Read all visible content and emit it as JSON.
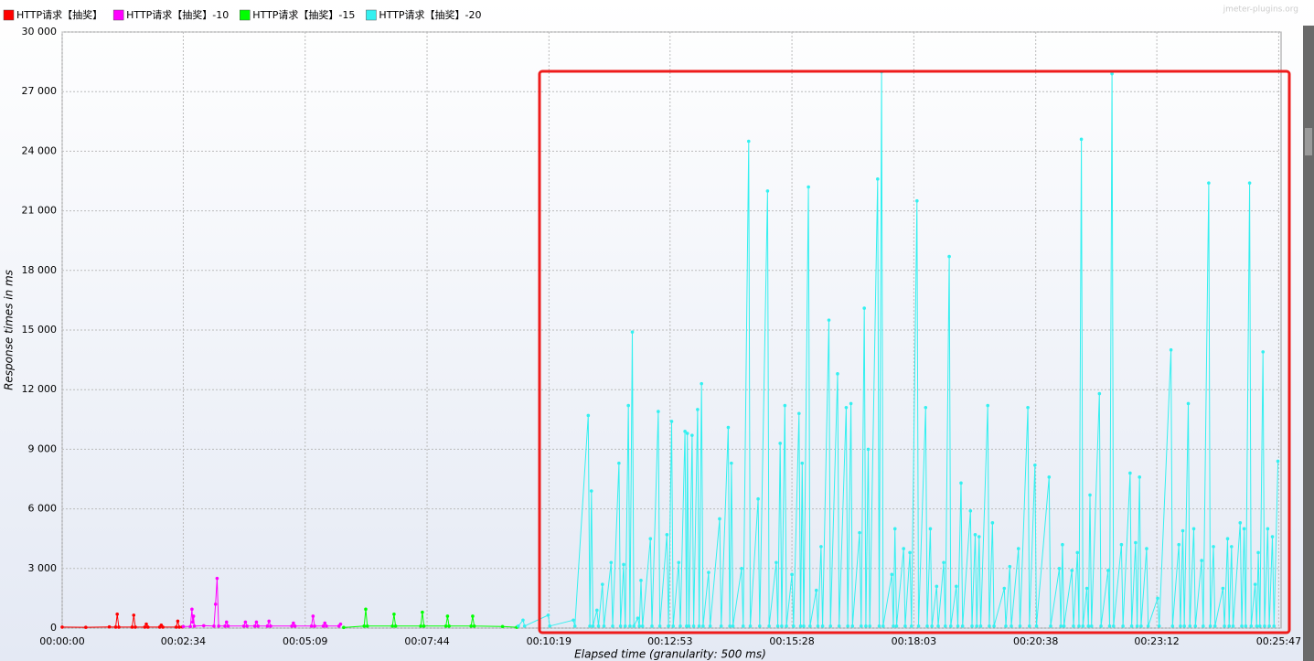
{
  "chart_data": {
    "type": "line",
    "watermark": "jmeter-plugins.org",
    "x_label": "Elapsed time (granularity: 500 ms)",
    "y_label": "Response times in ms",
    "xlim": [
      0,
      1550
    ],
    "ylim": [
      0,
      30000
    ],
    "grid": true,
    "legend": "top",
    "xticks": [
      {
        "value": 0,
        "label": "00:00:00"
      },
      {
        "value": 154,
        "label": "00:02:34"
      },
      {
        "value": 309,
        "label": "00:05:09"
      },
      {
        "value": 464,
        "label": "00:07:44"
      },
      {
        "value": 619,
        "label": "00:10:19"
      },
      {
        "value": 773,
        "label": "00:12:53"
      },
      {
        "value": 928,
        "label": "00:15:28"
      },
      {
        "value": 1083,
        "label": "00:18:03"
      },
      {
        "value": 1238,
        "label": "00:20:38"
      },
      {
        "value": 1392,
        "label": "00:23:12"
      },
      {
        "value": 1547,
        "label": "00:25:47"
      }
    ],
    "yticks": [
      0,
      {
        "value": 3000,
        "label": "3 000"
      },
      {
        "value": 6000,
        "label": "6 000"
      },
      {
        "value": 9000,
        "label": "9 000"
      },
      {
        "value": 12000,
        "label": "12 000"
      },
      {
        "value": 15000,
        "label": "15 000"
      },
      {
        "value": 18000,
        "label": "18 000"
      },
      {
        "value": 21000,
        "label": "21 000"
      },
      {
        "value": 24000,
        "label": "24 000"
      },
      {
        "value": 27000,
        "label": "27 000"
      },
      {
        "value": 30000,
        "label": "30 000"
      }
    ],
    "series": [
      {
        "name": "HTTP请求【抽奖】",
        "color": "#ff0000",
        "x": [
          0,
          30,
          60,
          68,
          70,
          72,
          89,
          91,
          93,
          105,
          107,
          109,
          124,
          126,
          128,
          145,
          147,
          149,
          153
        ],
        "values": [
          50,
          40,
          60,
          50,
          700,
          50,
          50,
          650,
          50,
          50,
          200,
          50,
          50,
          150,
          50,
          50,
          350,
          50,
          60
        ]
      },
      {
        "name": "HTTP请求【抽奖】-10",
        "color": "#ff00ff",
        "x": [
          154,
          163,
          165,
          166,
          167,
          168,
          180,
          193,
          195,
          197,
          199,
          207,
          209,
          211,
          231,
          233,
          235,
          245,
          247,
          249,
          261,
          263,
          265,
          292,
          294,
          296,
          317,
          319,
          321,
          332,
          334,
          336,
          352,
          354
        ],
        "values": [
          80,
          80,
          950,
          300,
          600,
          100,
          120,
          100,
          1200,
          2500,
          100,
          100,
          300,
          100,
          100,
          300,
          100,
          100,
          300,
          100,
          100,
          350,
          100,
          100,
          250,
          100,
          100,
          600,
          100,
          100,
          250,
          100,
          100,
          200
        ]
      },
      {
        "name": "HTTP请求【抽奖】-15",
        "color": "#00ff00",
        "x": [
          358,
          384,
          386,
          388,
          420,
          422,
          424,
          456,
          458,
          460,
          488,
          490,
          492,
          520,
          522,
          524,
          560,
          578
        ],
        "values": [
          30,
          100,
          950,
          100,
          100,
          700,
          100,
          100,
          800,
          100,
          100,
          600,
          100,
          100,
          600,
          100,
          80,
          40
        ]
      },
      {
        "name": "HTTP请求【抽奖】-20",
        "color": "#33f0f0",
        "x": [
          580,
          586,
          588,
          618,
          620,
          650,
          652,
          669,
          671,
          673,
          675,
          680,
          682,
          687,
          689,
          698,
          700,
          708,
          710,
          714,
          716,
          720,
          722,
          725,
          727,
          732,
          734,
          736,
          738,
          748,
          750,
          758,
          760,
          769,
          771,
          775,
          777,
          784,
          786,
          792,
          794,
          795,
          797,
          801,
          803,
          808,
          810,
          813,
          815,
          822,
          824,
          836,
          838,
          847,
          849,
          851,
          853,
          864,
          866,
          873,
          875,
          885,
          887,
          897,
          899,
          908,
          910,
          913,
          915,
          919,
          921,
          928,
          930,
          937,
          939,
          941,
          943,
          949,
          951,
          959,
          961,
          965,
          967,
          975,
          977,
          986,
          988,
          997,
          999,
          1003,
          1005,
          1014,
          1016,
          1020,
          1022,
          1025,
          1027,
          1037,
          1039,
          1042,
          1044,
          1055,
          1057,
          1059,
          1061,
          1070,
          1072,
          1078,
          1080,
          1087,
          1089,
          1098,
          1100,
          1104,
          1106,
          1112,
          1114,
          1121,
          1123,
          1128,
          1130,
          1137,
          1139,
          1143,
          1145,
          1155,
          1157,
          1161,
          1163,
          1166,
          1168,
          1177,
          1179,
          1183,
          1185,
          1198,
          1200,
          1205,
          1207,
          1216,
          1218,
          1228,
          1230,
          1237,
          1239,
          1255,
          1257,
          1268,
          1270,
          1272,
          1274,
          1284,
          1286,
          1291,
          1293,
          1296,
          1298,
          1303,
          1305,
          1307,
          1309,
          1319,
          1321,
          1330,
          1332,
          1335,
          1337,
          1347,
          1349,
          1358,
          1360,
          1365,
          1367,
          1370,
          1372,
          1379,
          1381,
          1393,
          1395,
          1410,
          1412,
          1420,
          1422,
          1425,
          1427,
          1432,
          1434,
          1439,
          1441,
          1449,
          1451,
          1458,
          1460,
          1464,
          1466,
          1476,
          1478,
          1482,
          1484,
          1487,
          1489,
          1498,
          1500,
          1503,
          1505,
          1510,
          1512,
          1517,
          1519,
          1521,
          1523,
          1527,
          1529,
          1533,
          1535,
          1539,
          1541,
          1546
        ],
        "values": [
          100,
          400,
          100,
          650,
          100,
          400,
          100,
          10700,
          100,
          6900,
          100,
          900,
          100,
          2200,
          100,
          3300,
          100,
          8300,
          100,
          3200,
          100,
          11200,
          100,
          14900,
          100,
          500,
          100,
          2400,
          100,
          4500,
          100,
          10900,
          100,
          4700,
          100,
          10400,
          100,
          3300,
          100,
          9900,
          100,
          9800,
          100,
          9700,
          100,
          11000,
          100,
          12300,
          100,
          2800,
          100,
          5500,
          100,
          10100,
          100,
          8300,
          100,
          3000,
          100,
          24500,
          100,
          6500,
          100,
          22000,
          100,
          3300,
          100,
          9300,
          100,
          11200,
          100,
          2700,
          100,
          10800,
          100,
          8300,
          100,
          22200,
          100,
          1900,
          100,
          4100,
          100,
          15500,
          100,
          12800,
          100,
          11100,
          100,
          11300,
          100,
          4800,
          100,
          16100,
          100,
          9000,
          100,
          22600,
          100,
          28000,
          100,
          2700,
          100,
          5000,
          100,
          4000,
          100,
          3800,
          100,
          21500,
          100,
          11100,
          100,
          5000,
          100,
          2100,
          100,
          3300,
          100,
          18700,
          100,
          2100,
          100,
          7300,
          100,
          5900,
          100,
          4700,
          100,
          4600,
          100,
          11200,
          100,
          5300,
          100,
          2000,
          100,
          3100,
          100,
          4000,
          100,
          11100,
          100,
          8200,
          100,
          7600,
          100,
          3000,
          100,
          4200,
          100,
          2900,
          100,
          3800,
          100,
          24600,
          100,
          2000,
          100,
          6700,
          100,
          11800,
          100,
          2900,
          100,
          27900,
          100,
          4200,
          100,
          7800,
          100,
          4300,
          100,
          7600,
          100,
          4000,
          100,
          1500,
          100,
          14000,
          100,
          4200,
          100,
          4900,
          100,
          11300,
          100,
          5000,
          100,
          3400,
          100,
          22400,
          100,
          4100,
          100,
          2000,
          100,
          4500,
          100,
          4100,
          100,
          5300,
          100,
          5000,
          100,
          22400,
          100,
          2200,
          100,
          3800,
          100,
          13900,
          100,
          5000,
          100,
          4600,
          100,
          8400
        ]
      }
    ]
  }
}
